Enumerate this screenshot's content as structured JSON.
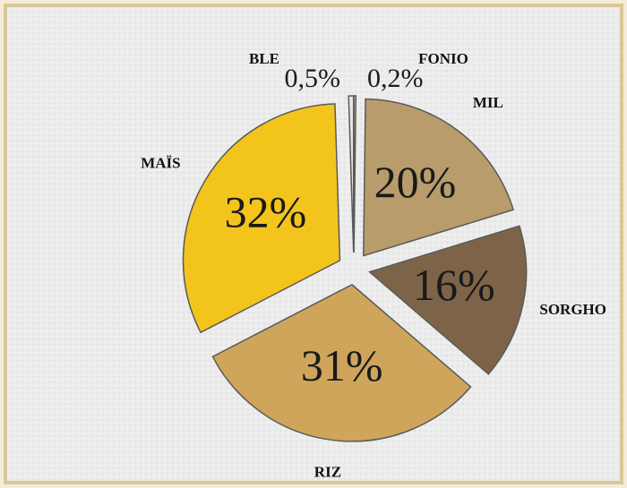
{
  "chart_data": {
    "type": "pie",
    "categories": [
      "FONIO",
      "MIL",
      "SORGHO",
      "RIZ",
      "MAÏS",
      "BLE"
    ],
    "values": [
      0.2,
      20,
      16,
      31,
      32,
      0.5
    ],
    "value_labels": [
      "0,2%",
      "20%",
      "16%",
      "31%",
      "32%",
      "0,5%"
    ],
    "colors": [
      "#e3cf9a",
      "#b89c6c",
      "#7d6448",
      "#cfa55c",
      "#f3c41c",
      "#e6e6e6"
    ]
  }
}
